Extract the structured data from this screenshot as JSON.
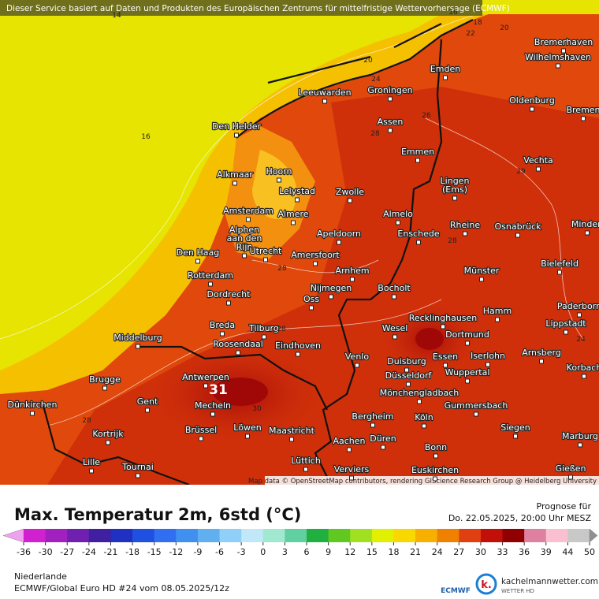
{
  "header": {
    "notice": "Dieser Service basiert auf Daten und Produkten des Europäischen Zentrums für mittelfristige Wettervorhersage (ECMWF)"
  },
  "map": {
    "cities": [
      "Bremerhaven",
      "Wilhelmshaven",
      "Emden",
      "Leeuwarden",
      "Groningen",
      "Oldenburg",
      "Bremen",
      "Den Helder",
      "Assen",
      "Emmen",
      "Vechta",
      "Alkmaar",
      "Hoorn",
      "Lelystad",
      "Zwolle",
      [
        "Lingen",
        "(Ems)"
      ],
      "Amsterdam",
      "Almere",
      "Almelo",
      "Rheine",
      "Osnabrück",
      "Minden",
      [
        "Alphen",
        "aan den",
        "Rijn"
      ],
      "Apeldoorn",
      "Enschede",
      "Den Haag",
      "Utrecht",
      "Amersfoort",
      "Bielefeld",
      "Rotterdam",
      "Arnhem",
      "Münster",
      "Dordrecht",
      "Nijmegen",
      "Bocholt",
      "Oss",
      "Hamm",
      "Paderborn",
      "Breda",
      "Tilburg",
      "Recklinghausen",
      "Lippstadt",
      "Middelburg",
      "Wesel",
      "Dortmund",
      "Roosendaal",
      "Eindhoven",
      "Arnsberg",
      "Essen",
      "Iserlohn",
      "Venlo",
      "Duisburg",
      "Korbach",
      "Brugge",
      "Antwerpen",
      "Düsseldorf",
      "Wuppertal",
      "Mönchengladbach",
      "Gent",
      "Mecheln",
      "Gummersbach",
      "Dünkirchen",
      "Bergheim",
      "Köln",
      "Kortrijk",
      "Brüssel",
      "Löwen",
      "Maastricht",
      "Siegen",
      "Düren",
      "Aachen",
      "Marburg",
      "Bonn",
      "Lille",
      "Tournai",
      "Lüttich",
      "Gießen",
      "Verviers",
      "Euskirchen"
    ],
    "contour_labels": [
      14,
      16,
      16,
      18,
      20,
      22,
      20,
      24,
      26,
      28,
      29,
      28,
      28,
      28,
      24,
      30,
      28
    ],
    "max_label": 31,
    "attribution": "Map data © OpenStreetMap contributors, rendering GIScience Research Group @ Heidelberg University"
  },
  "footer": {
    "title": "Max. Temperatur 2m, 6std (°C)",
    "forecast_label": "Prognose für",
    "forecast_time": "Do. 22.05.2025, 20:00 Uhr MESZ",
    "region": "Niederlande",
    "model": "ECMWF/Global Euro HD #24 vom  08.05.2025/12z",
    "colorbar": {
      "ticks": [
        -36,
        -30,
        -27,
        -24,
        -21,
        -18,
        -15,
        -12,
        -9,
        -6,
        -3,
        0,
        3,
        6,
        9,
        12,
        15,
        18,
        21,
        24,
        27,
        30,
        33,
        36,
        39,
        44,
        50
      ],
      "colors": [
        "#f0a0f0",
        "#d020d0",
        "#a020c0",
        "#7020b0",
        "#4020a0",
        "#2030c0",
        "#2050e0",
        "#3070f0",
        "#4090f0",
        "#60b0f0",
        "#90d0f8",
        "#c0e8f8",
        "#a0e8d0",
        "#60d0a0",
        "#20b040",
        "#60c820",
        "#a0e020",
        "#e0f000",
        "#f8d800",
        "#f8b000",
        "#f08000",
        "#e04010",
        "#c01008",
        "#900000",
        "#e080a0",
        "#f8c0d0",
        "#c8c8c8",
        "#909090"
      ]
    },
    "logos": {
      "ecmwf": "ECMWF",
      "k": "k.",
      "site": "kachelmannwetter.com",
      "tag": "WETTER HD"
    }
  }
}
